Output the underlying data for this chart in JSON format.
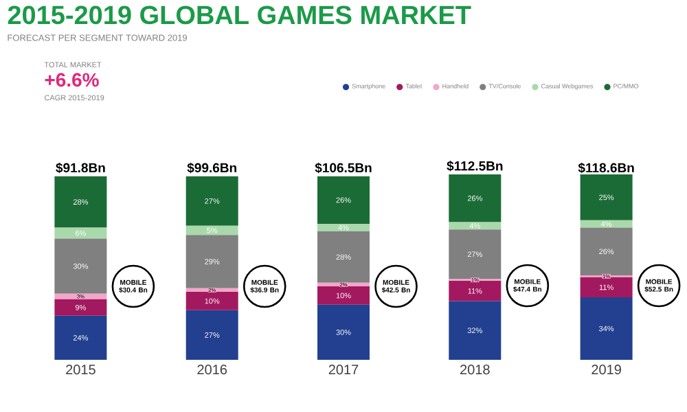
{
  "chart_data": {
    "type": "bar",
    "stacked": true,
    "title": "2015-2019 GLOBAL GAMES MARKET",
    "subtitle": "FORECAST PER SEGMENT TOWARD 2019",
    "categories": [
      "2015",
      "2016",
      "2017",
      "2018",
      "2019"
    ],
    "series": [
      {
        "name": "Smartphone",
        "color": "#22408f",
        "values": [
          24,
          27,
          30,
          32,
          34
        ],
        "value_labels": [
          "24%",
          "27%",
          "30%",
          "32%",
          "34%"
        ]
      },
      {
        "name": "Tablet",
        "color": "#a3195f",
        "values": [
          9,
          10,
          10,
          11,
          11
        ],
        "value_labels": [
          "9%",
          "10%",
          "10%",
          "11%",
          "11%"
        ]
      },
      {
        "name": "Handheld",
        "color": "#f2a7c9",
        "values": [
          3,
          2,
          2,
          1,
          1
        ],
        "value_labels": [
          "3%",
          "2%",
          "2%",
          "1%",
          "1%"
        ]
      },
      {
        "name": "TV/Console",
        "color": "#808080",
        "values": [
          30,
          29,
          28,
          27,
          26
        ],
        "value_labels": [
          "30%",
          "29%",
          "28%",
          "27%",
          "26%"
        ]
      },
      {
        "name": "Casual Webgames",
        "color": "#a9d9ab",
        "values": [
          6,
          5,
          4,
          4,
          4
        ],
        "value_labels": [
          "6%",
          "5%",
          "4%",
          "4%",
          "4%"
        ]
      },
      {
        "name": "PC/MMO",
        "color": "#1b6b36",
        "values": [
          28,
          27,
          26,
          26,
          25
        ],
        "value_labels": [
          "28%",
          "27%",
          "26%",
          "26%",
          "25%"
        ]
      }
    ],
    "legend": "top right",
    "annotations": [
      "TOTAL MARKET",
      "+6.6%",
      "CAGR 2015-2019",
      "MOBILE $30.4 Bn",
      "MOBILE $36.9 Bn",
      "MOBILE $42.5 Bn",
      "MOBILE $47.4 Bn",
      "MOBILE $52.5 Bn",
      {
        "text": "$91.8Bn",
        "x": "2015",
        "y": 100
      },
      {
        "text": "$99.6Bn",
        "x": "2016",
        "y": 100
      },
      {
        "text": "$106.5Bn",
        "x": "2017",
        "y": 100
      },
      {
        "text": "$112.5Bn",
        "x": "2018",
        "y": 101
      },
      {
        "text": "$118.6Bn",
        "x": "2019",
        "y": 100
      }
    ]
  }
}
